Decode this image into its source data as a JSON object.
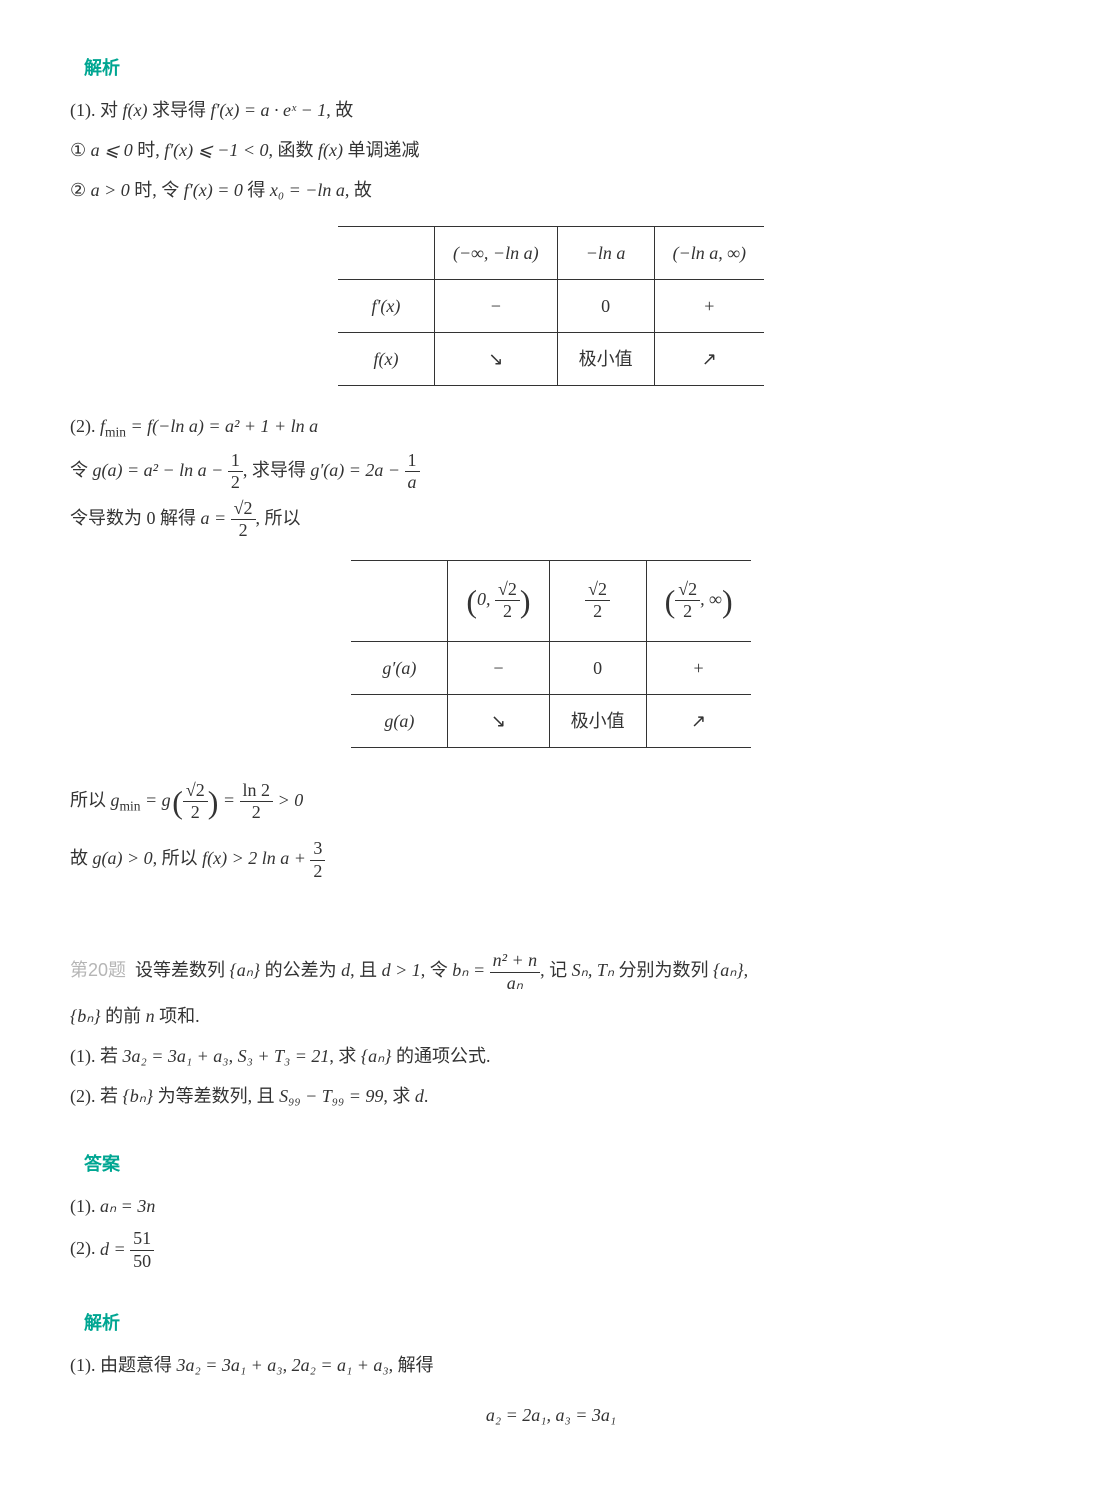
{
  "section1": {
    "label": "解析",
    "p1_a": "(1). 对 ",
    "p1_b": " 求导得 ",
    "p1_c": ", 故",
    "m1_fx": "f(x)",
    "m1_fpx": "f′(x) = a · eˣ − 1",
    "p2_a": "① ",
    "p2_b": " 时, ",
    "p2_c": ", 函数 ",
    "p2_d": " 单调递减",
    "m2_cond": "a ⩽ 0",
    "m2_ineq": "f′(x) ⩽ −1 < 0",
    "m2_fx": "f(x)",
    "p3_a": "② ",
    "p3_b": " 时, 令 ",
    "p3_c": " 得 ",
    "p3_d": ", 故",
    "m3_cond": "a > 0",
    "m3_eq": "f′(x) = 0",
    "m3_x0": "x₀ = −ln a"
  },
  "table1": {
    "h1": "(−∞, −ln a)",
    "h2": "−ln a",
    "h3": "(−ln a, ∞)",
    "r1_label": "f′(x)",
    "r1_c1": "−",
    "r1_c2": "0",
    "r1_c3": "+",
    "r2_label": "f(x)",
    "r2_c1": "↘",
    "r2_c2": "极小值",
    "r2_c3": "↗"
  },
  "section2": {
    "p1_a": "(2). ",
    "m1": "f",
    "m1_sub": "min",
    "m1_eq": " = f(−ln a) = a² + 1 + ln a",
    "p2_a": "令 ",
    "p2_b": ", 求导得 ",
    "m2_ga": "g(a) = a² − ln a − ",
    "m2_half_num": "1",
    "m2_half_den": "2",
    "m2_gpa": "g′(a) = 2a − ",
    "m2_1a_num": "1",
    "m2_1a_den": "a",
    "p3_a": "令导数为 0 解得 ",
    "p3_b": ", 所以",
    "m3_a": "a = ",
    "m3_num": "√2",
    "m3_den": "2"
  },
  "table2": {
    "h1_open": "0, ",
    "h1_num": "√2",
    "h1_den": "2",
    "h2_num": "√2",
    "h2_den": "2",
    "h3_num": "√2",
    "h3_den": "2",
    "h3_close": ", ∞",
    "r1_label": "g′(a)",
    "r1_c1": "−",
    "r1_c2": "0",
    "r1_c3": "+",
    "r2_label": "g(a)",
    "r2_c1": "↘",
    "r2_c2": "极小值",
    "r2_c3": "↗"
  },
  "section3": {
    "p1_a": "所以 ",
    "m1_g": "g",
    "m1_sub": "min",
    "m1_eq1": " = g",
    "m1_arg_num": "√2",
    "m1_arg_den": "2",
    "m1_eq2": " = ",
    "m1_res_num": "ln 2",
    "m1_res_den": "2",
    "m1_gt": " > 0",
    "p2_a": "故 ",
    "p2_b": ", 所以 ",
    "m2_ga": "g(a) > 0",
    "m2_fx": "f(x) > 2 ln a + ",
    "m2_num": "3",
    "m2_den": "2"
  },
  "q20": {
    "label": "第20题",
    "p1_a": "设等差数列 ",
    "p1_b": " 的公差为 ",
    "p1_c": ", 且 ",
    "p1_d": ", 令 ",
    "p1_e": ", 记 ",
    "p1_f": " 分别为数列 ",
    "p1_g": ",",
    "m_an": "{aₙ}",
    "m_d": "d",
    "m_d1": "d > 1",
    "m_bn_lhs": "bₙ = ",
    "m_bn_num": "n² + n",
    "m_bn_den": "aₙ",
    "m_sntn": "Sₙ, Tₙ",
    "p2_a": " 的前 ",
    "p2_b": " 项和.",
    "m_bn": "{bₙ}",
    "m_n": "n",
    "p3_a": "(1). 若 ",
    "p3_b": ", ",
    "p3_c": ", 求 ",
    "p3_d": " 的通项公式.",
    "m3_eq1": "3a₂ = 3a₁ + a₃",
    "m3_eq2": "S₃ + T₃ = 21",
    "m3_an": "{aₙ}",
    "p4_a": "(2). 若 ",
    "p4_b": " 为等差数列, 且 ",
    "p4_c": ", 求 ",
    "p4_d": ".",
    "m4_bn": "{bₙ}",
    "m4_eq": "S₉₉ − T₉₉ = 99",
    "m4_d": "d"
  },
  "ans": {
    "label": "答案",
    "p1": "(1). ",
    "m1": "aₙ = 3n",
    "p2": "(2). ",
    "m2_d": "d = ",
    "m2_num": "51",
    "m2_den": "50"
  },
  "sol2": {
    "label": "解析",
    "p1_a": "(1). 由题意得 ",
    "p1_b": ", ",
    "p1_c": ", 解得",
    "m1_eq1": "3a₂ = 3a₁ + a₃",
    "m1_eq2": "2a₂ = a₁ + a₃",
    "centered": "a₂ = 2a₁, a₃ = 3a₁"
  }
}
